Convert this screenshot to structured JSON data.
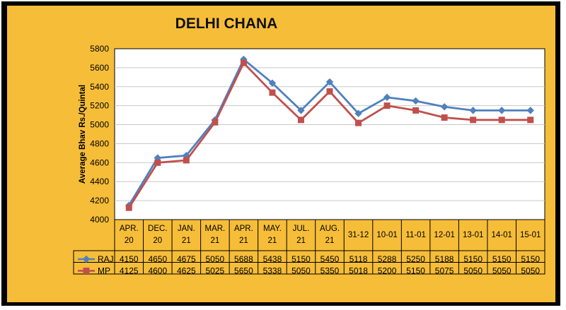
{
  "chart_data": {
    "type": "line",
    "title": "DELHI CHANA",
    "ylabel": "Average Bhav Rs./Quintal",
    "xlabel": "",
    "ylim": [
      4000,
      5800
    ],
    "ytick_step": 200,
    "yticks": [
      "4000",
      "4200",
      "4400",
      "4600",
      "4800",
      "5000",
      "5200",
      "5400",
      "5600",
      "5800"
    ],
    "grid": true,
    "legend": "data-table-left",
    "categories": [
      [
        "APR.",
        "20"
      ],
      [
        "DEC.",
        "20"
      ],
      [
        "JAN.",
        "21"
      ],
      [
        "MAR.",
        "21"
      ],
      [
        "APR.",
        "21"
      ],
      [
        "MAY.",
        "21"
      ],
      [
        "JUL.",
        "21"
      ],
      [
        "AUG.",
        "21"
      ],
      [
        "31-12"
      ],
      [
        "10-01"
      ],
      [
        "11-01"
      ],
      [
        "12-01"
      ],
      [
        "13-01"
      ],
      [
        "14-01"
      ],
      [
        "15-01"
      ]
    ],
    "series": [
      {
        "name": "RAJ",
        "marker": "diamond",
        "color": "#4f81bd",
        "values": [
          4150,
          4650,
          4675,
          5050,
          5688,
          5438,
          5150,
          5450,
          5118,
          5288,
          5250,
          5188,
          5150,
          5150,
          5150
        ]
      },
      {
        "name": "MP",
        "marker": "square",
        "color": "#c0504d",
        "values": [
          4125,
          4600,
          4625,
          5025,
          5650,
          5338,
          5050,
          5350,
          5018,
          5200,
          5150,
          5075,
          5050,
          5050,
          5050
        ]
      }
    ]
  },
  "colors": {
    "background": "#f6bd39",
    "border": "#000000",
    "plot_area": "#ffffff",
    "grid": "#c8c8c8"
  }
}
